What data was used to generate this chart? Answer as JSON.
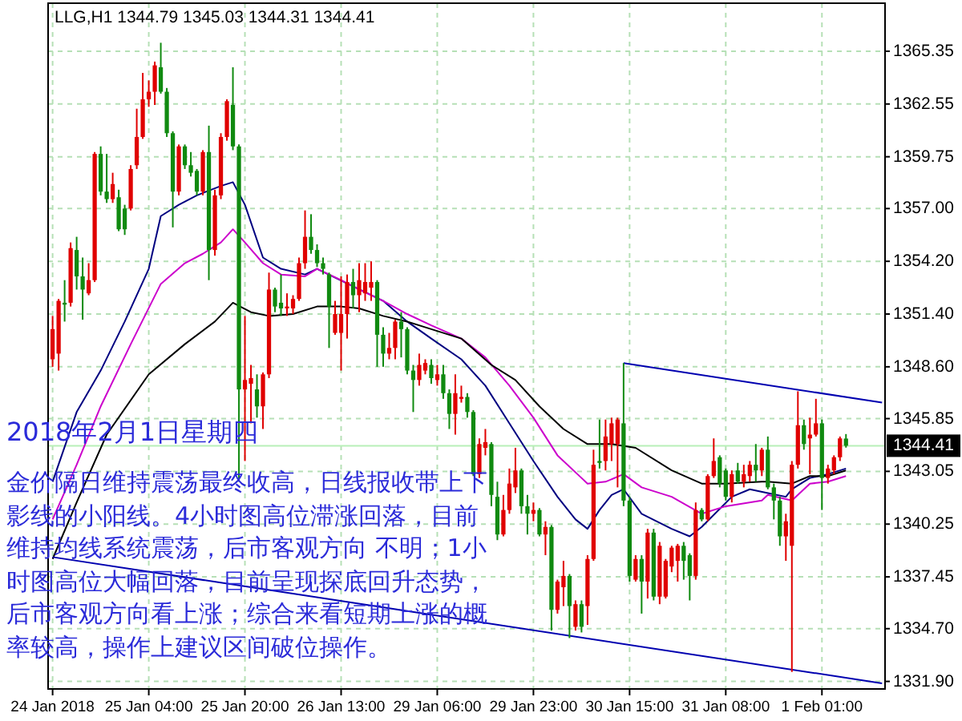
{
  "chart_data": {
    "type": "candlestick",
    "title": "LLG,H1 1344.79 1345.03 1344.31 1344.41",
    "annotations": [
      "2018年2月1日星期四",
      "金价隔日维持震荡最终收高，日线报收带上下影线的小阳线。4小时图高位滞涨回落，目前维持均线系统震荡，后市客观方向 不明；1小时图高位大幅回落，目前呈现探底回升态势，后市客观方向看上涨；综合来看短期上涨的概率较高，操作上建议区间破位操作。"
    ],
    "categories": [
      "24 Jan 2018",
      null,
      null,
      null,
      null,
      null,
      null,
      null,
      null,
      null,
      null,
      null,
      null,
      null,
      null,
      null,
      "25 Jan 04:00",
      null,
      null,
      null,
      null,
      null,
      null,
      null,
      null,
      null,
      null,
      null,
      null,
      null,
      null,
      null,
      "25 Jan 20:00",
      null,
      null,
      null,
      null,
      null,
      null,
      null,
      null,
      null,
      null,
      null,
      null,
      null,
      null,
      null,
      "26 Jan 13:00",
      null,
      null,
      null,
      null,
      null,
      null,
      null,
      null,
      null,
      null,
      null,
      null,
      null,
      null,
      null,
      "29 Jan 06:00",
      null,
      null,
      null,
      null,
      null,
      null,
      null,
      null,
      null,
      null,
      null,
      null,
      null,
      null,
      null,
      "29 Jan 23:00",
      null,
      null,
      null,
      null,
      null,
      null,
      null,
      null,
      null,
      null,
      null,
      null,
      null,
      null,
      null,
      "30 Jan 15:00",
      null,
      null,
      null,
      null,
      null,
      null,
      null,
      null,
      null,
      null,
      null,
      null,
      null,
      null,
      null,
      "31 Jan 08:00",
      null,
      null,
      null,
      null,
      null,
      null,
      null,
      null,
      null,
      null,
      null,
      null,
      null,
      null,
      null,
      "1 Feb 01:00",
      null,
      null,
      null,
      null,
      null,
      null,
      null,
      null,
      null,
      null
    ],
    "ohlc": [
      [
        1349.0,
        1351.3,
        1348.6,
        1350.6
      ],
      [
        1349.3,
        1352.2,
        1348.4,
        1352.1
      ],
      [
        1352.0,
        1353.2,
        1351.0,
        1351.9
      ],
      [
        1352.0,
        1355.2,
        1351.8,
        1354.9
      ],
      [
        1354.8,
        1355.5,
        1352.7,
        1353.4
      ],
      [
        1353.4,
        1354.4,
        1351.1,
        1352.7
      ],
      [
        1352.5,
        1354.1,
        1352.4,
        1353.2
      ],
      [
        1353.2,
        1360.0,
        1353.1,
        1359.9
      ],
      [
        1359.9,
        1360.3,
        1357.7,
        1357.9
      ],
      [
        1357.9,
        1359.9,
        1357.3,
        1357.5
      ],
      [
        1357.5,
        1358.9,
        1357.3,
        1358.3
      ],
      [
        1357.6,
        1358.0,
        1355.8,
        1355.9
      ],
      [
        1357.0,
        1357.2,
        1355.6,
        1355.9
      ],
      [
        1357.0,
        1359.3,
        1356.9,
        1359.1
      ],
      [
        1359.3,
        1362.3,
        1359.1,
        1360.8
      ],
      [
        1360.8,
        1364.2,
        1360.7,
        1362.8
      ],
      [
        1362.8,
        1363.8,
        1362.4,
        1363.2
      ],
      [
        1363.2,
        1364.8,
        1362.5,
        1364.6
      ],
      [
        1364.5,
        1365.8,
        1363.1,
        1363.2
      ],
      [
        1363.2,
        1363.4,
        1360.8,
        1361.0
      ],
      [
        1361.0,
        1361.1,
        1356.0,
        1357.9
      ],
      [
        1357.9,
        1360.4,
        1357.7,
        1360.3
      ],
      [
        1360.3,
        1360.4,
        1359.1,
        1359.3
      ],
      [
        1359.3,
        1360.0,
        1358.7,
        1358.9
      ],
      [
        1359.0,
        1359.1,
        1357.7,
        1357.9
      ],
      [
        1357.9,
        1360.1,
        1357.7,
        1360.0
      ],
      [
        1360.0,
        1361.4,
        1353.2,
        1354.8
      ],
      [
        1354.8,
        1358.0,
        1354.5,
        1357.7
      ],
      [
        1357.7,
        1361.0,
        1357.5,
        1360.8
      ],
      [
        1360.8,
        1362.8,
        1360.6,
        1362.7
      ],
      [
        1362.5,
        1364.5,
        1360.1,
        1360.3
      ],
      [
        1360.3,
        1360.4,
        1342.5,
        1347.4
      ],
      [
        1347.4,
        1351.3,
        1343.6,
        1347.9
      ],
      [
        1347.7,
        1348.7,
        1345.6,
        1348.0
      ],
      [
        1347.4,
        1348.2,
        1345.9,
        1346.5
      ],
      [
        1346.5,
        1348.3,
        1345.3,
        1348.2
      ],
      [
        1348.2,
        1353.6,
        1348.0,
        1352.7
      ],
      [
        1352.7,
        1352.8,
        1351.5,
        1351.8
      ],
      [
        1352.0,
        1353.5,
        1351.3,
        1351.7
      ],
      [
        1351.7,
        1352.5,
        1351.3,
        1351.8
      ],
      [
        1351.7,
        1352.4,
        1351.4,
        1352.2
      ],
      [
        1352.2,
        1354.4,
        1352.1,
        1354.1
      ],
      [
        1354.1,
        1356.9,
        1353.8,
        1355.5
      ],
      [
        1355.5,
        1356.7,
        1354.6,
        1354.8
      ],
      [
        1354.8,
        1355.1,
        1353.9,
        1354.1
      ],
      [
        1354.1,
        1354.4,
        1353.5,
        1353.8
      ],
      [
        1353.5,
        1353.6,
        1349.6,
        1351.8
      ],
      [
        1350.4,
        1352.1,
        1350.3,
        1351.4
      ],
      [
        1350.4,
        1353.4,
        1348.4,
        1351.4
      ],
      [
        1351.4,
        1353.5,
        1350.1,
        1353.1
      ],
      [
        1353.1,
        1353.8,
        1351.7,
        1352.4
      ],
      [
        1352.4,
        1354.1,
        1351.5,
        1353.2
      ],
      [
        1352.5,
        1354.1,
        1352.1,
        1353.1
      ],
      [
        1352.8,
        1354.2,
        1352.1,
        1353.1
      ],
      [
        1353.1,
        1353.2,
        1348.6,
        1350.3
      ],
      [
        1350.3,
        1350.7,
        1348.6,
        1349.3
      ],
      [
        1349.3,
        1350.4,
        1349.0,
        1349.6
      ],
      [
        1349.6,
        1351.1,
        1349.0,
        1351.0
      ],
      [
        1351.0,
        1351.5,
        1349.1,
        1350.6
      ],
      [
        1350.6,
        1350.7,
        1348.2,
        1348.4
      ],
      [
        1348.4,
        1348.7,
        1346.2,
        1347.9
      ],
      [
        1347.9,
        1349.3,
        1347.6,
        1348.7
      ],
      [
        1348.4,
        1349.0,
        1348.2,
        1348.8
      ],
      [
        1348.7,
        1349.0,
        1347.7,
        1348.0
      ],
      [
        1347.9,
        1348.7,
        1347.6,
        1348.2
      ],
      [
        1348.2,
        1348.7,
        1346.9,
        1347.2
      ],
      [
        1347.2,
        1347.4,
        1345.3,
        1346.1
      ],
      [
        1346.1,
        1348.2,
        1345.0,
        1347.2
      ],
      [
        1346.9,
        1347.6,
        1346.7,
        1347.0
      ],
      [
        1347.0,
        1347.2,
        1345.9,
        1346.2
      ],
      [
        1346.2,
        1346.3,
        1342.8,
        1342.9
      ],
      [
        1342.9,
        1344.8,
        1342.7,
        1344.5
      ],
      [
        1344.3,
        1345.3,
        1343.9,
        1344.6
      ],
      [
        1344.5,
        1344.6,
        1341.2,
        1341.8
      ],
      [
        1341.7,
        1342.5,
        1339.4,
        1339.7
      ],
      [
        1339.7,
        1341.8,
        1339.6,
        1341.0
      ],
      [
        1341.0,
        1343.2,
        1340.8,
        1342.4
      ],
      [
        1342.2,
        1344.3,
        1341.9,
        1343.1
      ],
      [
        1343.1,
        1343.2,
        1340.8,
        1341.2
      ],
      [
        1341.2,
        1341.8,
        1339.7,
        1340.8
      ],
      [
        1340.8,
        1341.4,
        1340.4,
        1341.0
      ],
      [
        1341.0,
        1341.1,
        1339.6,
        1339.7
      ],
      [
        1339.7,
        1340.4,
        1338.6,
        1340.1
      ],
      [
        1340.1,
        1340.2,
        1334.6,
        1335.7
      ],
      [
        1335.7,
        1337.3,
        1335.5,
        1337.2
      ],
      [
        1336.9,
        1338.3,
        1335.9,
        1337.5
      ],
      [
        1337.5,
        1337.6,
        1334.2,
        1335.9
      ],
      [
        1334.8,
        1336.2,
        1334.6,
        1336.0
      ],
      [
        1336.0,
        1336.2,
        1334.5,
        1334.8
      ],
      [
        1335.9,
        1338.6,
        1334.9,
        1338.4
      ],
      [
        1338.4,
        1344.2,
        1338.3,
        1343.4
      ],
      [
        1343.6,
        1345.8,
        1343.2,
        1343.5
      ],
      [
        1343.6,
        1345.8,
        1343.1,
        1344.9
      ],
      [
        1344.5,
        1345.9,
        1343.6,
        1345.6
      ],
      [
        1344.5,
        1345.9,
        1342.2,
        1345.8
      ],
      [
        1345.6,
        1348.8,
        1341.2,
        1341.5
      ],
      [
        1341.5,
        1341.7,
        1337.2,
        1337.5
      ],
      [
        1337.3,
        1338.6,
        1337.2,
        1338.4
      ],
      [
        1338.4,
        1338.6,
        1335.5,
        1337.2
      ],
      [
        1337.2,
        1340.0,
        1336.3,
        1339.8
      ],
      [
        1339.8,
        1340.0,
        1336.2,
        1336.4
      ],
      [
        1336.4,
        1339.3,
        1336.0,
        1339.1
      ],
      [
        1336.4,
        1338.4,
        1336.3,
        1338.3
      ],
      [
        1338.0,
        1339.1,
        1337.7,
        1339.0
      ],
      [
        1338.3,
        1339.2,
        1337.2,
        1339.1
      ],
      [
        1339.1,
        1339.3,
        1337.3,
        1338.3
      ],
      [
        1338.6,
        1338.7,
        1336.2,
        1337.5
      ],
      [
        1337.5,
        1341.4,
        1337.3,
        1341.0
      ],
      [
        1341.0,
        1341.1,
        1340.4,
        1340.5
      ],
      [
        1340.5,
        1342.9,
        1340.4,
        1342.8
      ],
      [
        1342.8,
        1344.8,
        1342.7,
        1343.6
      ],
      [
        1343.8,
        1343.9,
        1342.2,
        1342.4
      ],
      [
        1343.1,
        1343.2,
        1341.5,
        1341.7
      ],
      [
        1341.7,
        1343.1,
        1341.4,
        1342.9
      ],
      [
        1343.1,
        1343.5,
        1342.4,
        1342.5
      ],
      [
        1342.5,
        1343.4,
        1342.2,
        1342.9
      ],
      [
        1342.8,
        1343.6,
        1342.5,
        1343.4
      ],
      [
        1343.4,
        1344.5,
        1342.5,
        1343.1
      ],
      [
        1343.1,
        1344.3,
        1342.8,
        1344.2
      ],
      [
        1344.2,
        1344.9,
        1342.1,
        1342.2
      ],
      [
        1342.2,
        1342.4,
        1340.5,
        1341.5
      ],
      [
        1341.5,
        1341.7,
        1339.1,
        1339.6
      ],
      [
        1339.6,
        1340.8,
        1338.3,
        1340.4
      ],
      [
        1339.1,
        1343.6,
        1332.4,
        1343.4
      ],
      [
        1343.4,
        1347.3,
        1343.2,
        1345.5
      ],
      [
        1345.5,
        1345.8,
        1344.2,
        1344.5
      ],
      [
        1344.8,
        1345.9,
        1342.9,
        1345.0
      ],
      [
        1345.0,
        1346.9,
        1344.9,
        1345.6
      ],
      [
        1345.6,
        1345.8,
        1341.0,
        1342.7
      ],
      [
        1342.7,
        1343.4,
        1342.4,
        1343.2
      ],
      [
        1343.1,
        1343.9,
        1342.9,
        1343.8
      ],
      [
        1343.8,
        1344.9,
        1343.6,
        1344.8
      ],
      [
        1344.79,
        1345.03,
        1344.31,
        1344.41
      ],
      null,
      null,
      null,
      null,
      null,
      null
    ],
    "colors": [
      "#e00000",
      "#e00000",
      "#108a10",
      "#e00000",
      "#108a10",
      "#108a10",
      "#e00000",
      "#e00000",
      "#108a10",
      "#108a10",
      "#e00000",
      "#108a10",
      "#108a10",
      "#e00000",
      "#e00000",
      "#e00000",
      "#e00000",
      "#e00000",
      "#108a10",
      "#108a10",
      "#108a10",
      "#e00000",
      "#108a10",
      "#108a10",
      "#108a10",
      "#e00000",
      "#108a10",
      "#e00000",
      "#e00000",
      "#e00000",
      "#108a10",
      "#108a10",
      "#e00000",
      "#e00000",
      "#108a10",
      "#e00000",
      "#e00000",
      "#108a10",
      "#108a10",
      "#e00000",
      "#e00000",
      "#e00000",
      "#e00000",
      "#108a10",
      "#108a10",
      "#108a10",
      "#108a10",
      "#e00000",
      "#e00000",
      "#e00000",
      "#108a10",
      "#e00000",
      "#e00000",
      "#e00000",
      "#108a10",
      "#108a10",
      "#e00000",
      "#e00000",
      "#108a10",
      "#108a10",
      "#108a10",
      "#e00000",
      "#e00000",
      "#108a10",
      "#e00000",
      "#108a10",
      "#108a10",
      "#e00000",
      "#e00000",
      "#108a10",
      "#108a10",
      "#e00000",
      "#e00000",
      "#108a10",
      "#108a10",
      "#e00000",
      "#e00000",
      "#e00000",
      "#108a10",
      "#108a10",
      "#e00000",
      "#108a10",
      "#e00000",
      "#108a10",
      "#e00000",
      "#e00000",
      "#108a10",
      "#e00000",
      "#108a10",
      "#e00000",
      "#e00000",
      "#108a10",
      "#e00000",
      "#e00000",
      "#e00000",
      "#108a10",
      "#108a10",
      "#e00000",
      "#108a10",
      "#e00000",
      "#108a10",
      "#e00000",
      "#e00000",
      "#e00000",
      "#e00000",
      "#108a10",
      "#108a10",
      "#e00000",
      "#108a10",
      "#e00000",
      "#e00000",
      "#108a10",
      "#108a10",
      "#e00000",
      "#108a10",
      "#e00000",
      "#e00000",
      "#108a10",
      "#e00000",
      "#108a10",
      "#108a10",
      "#108a10",
      "#e00000",
      "#e00000",
      "#e00000",
      "#108a10",
      "#e00000",
      "#e00000",
      "#108a10",
      "#e00000",
      "#e00000",
      "#e00000",
      "#108a10",
      null,
      null,
      null,
      null,
      null,
      null
    ],
    "series": [
      {
        "type": "line",
        "color": "#000080",
        "values": [
          1342.5,
          null,
          null,
          null,
          1346.2,
          null,
          null,
          null,
          1348.4,
          null,
          null,
          null,
          1351.0,
          null,
          null,
          null,
          1353.8,
          null,
          1356.6,
          null,
          null,
          1357.2,
          null,
          null,
          1357.7,
          null,
          null,
          null,
          1358.2,
          null,
          1358.4,
          null,
          1357.2,
          null,
          null,
          1354.4,
          null,
          null,
          1353.8,
          null,
          null,
          null,
          1353.5,
          null,
          1353.8,
          null,
          null,
          null,
          null,
          null,
          null,
          null,
          null,
          null,
          null,
          1352.1,
          null,
          null,
          null,
          1351.0,
          null,
          null,
          null,
          1350.1,
          null,
          null,
          null,
          null,
          1349.0,
          null,
          null,
          null,
          1347.6,
          null,
          null,
          null,
          1345.6,
          null,
          null,
          null,
          1343.6,
          null,
          null,
          null,
          1341.7,
          null,
          null,
          1340.5,
          null,
          1340.0,
          null,
          1341.0,
          null,
          1341.8,
          null,
          1342.1,
          null,
          null,
          1340.8,
          null,
          null,
          null,
          null,
          1340.0,
          null,
          null,
          1339.6,
          null,
          1340.1,
          null,
          null,
          null,
          null,
          1341.7,
          null,
          null,
          1342.1,
          null,
          null,
          1341.9,
          null,
          null,
          1341.7,
          1342.1,
          null,
          null,
          1342.7,
          null,
          null,
          1342.9,
          null,
          null,
          1343.2,
          null,
          null,
          null,
          null,
          null,
          null
        ]
      },
      {
        "type": "line",
        "color": "#cc00cc",
        "values": [
          1340.5,
          null,
          null,
          null,
          1343.4,
          null,
          null,
          null,
          1346.5,
          null,
          null,
          null,
          null,
          1349.8,
          null,
          null,
          null,
          null,
          1353.0,
          null,
          null,
          null,
          1354.1,
          null,
          null,
          1354.6,
          null,
          null,
          1355.2,
          null,
          1355.9,
          null,
          1355.2,
          null,
          null,
          1354.1,
          null,
          null,
          1353.5,
          null,
          null,
          null,
          1353.4,
          null,
          1353.8,
          null,
          null,
          null,
          1353.2,
          null,
          null,
          1352.7,
          null,
          null,
          null,
          1352.1,
          null,
          null,
          null,
          1351.4,
          null,
          null,
          null,
          1350.8,
          null,
          null,
          null,
          null,
          1350.1,
          null,
          null,
          null,
          1349.1,
          null,
          null,
          null,
          1347.6,
          null,
          null,
          null,
          1345.9,
          null,
          null,
          null,
          1343.9,
          null,
          null,
          null,
          1342.7,
          1342.4,
          null,
          null,
          1342.5,
          null,
          null,
          1342.9,
          null,
          null,
          1342.2,
          null,
          null,
          null,
          null,
          1341.7,
          null,
          null,
          null,
          null,
          1340.8,
          null,
          null,
          null,
          1341.2,
          null,
          null,
          null,
          null,
          null,
          1341.5,
          1341.8,
          null,
          null,
          null,
          1341.5,
          null,
          null,
          1342.4,
          null,
          null,
          1342.5,
          null,
          null,
          1342.8,
          null,
          null,
          null,
          null,
          null,
          null
        ]
      },
      {
        "type": "line",
        "color": "#000000",
        "values": [
          1338.4,
          null,
          null,
          null,
          1341.4,
          null,
          null,
          null,
          null,
          1345.0,
          null,
          null,
          null,
          null,
          null,
          null,
          1348.2,
          null,
          null,
          null,
          null,
          null,
          1349.8,
          null,
          null,
          null,
          null,
          1351.0,
          null,
          null,
          1352.0,
          null,
          null,
          1351.5,
          null,
          null,
          1351.3,
          null,
          null,
          null,
          1351.4,
          null,
          null,
          null,
          1351.8,
          null,
          null,
          null,
          1351.8,
          null,
          null,
          1351.7,
          null,
          null,
          null,
          1351.3,
          null,
          null,
          null,
          1351.0,
          null,
          null,
          null,
          1350.6,
          null,
          null,
          null,
          null,
          1350.1,
          null,
          null,
          null,
          null,
          1348.7,
          null,
          null,
          null,
          1347.9,
          null,
          null,
          null,
          1346.5,
          null,
          null,
          null,
          1345.3,
          null,
          null,
          null,
          1344.5,
          null,
          null,
          null,
          1344.5,
          null,
          null,
          null,
          1344.3,
          null,
          null,
          null,
          null,
          null,
          1343.1,
          null,
          null,
          null,
          null,
          1342.4,
          null,
          null,
          null,
          1342.4,
          null,
          null,
          null,
          null,
          null,
          1342.5,
          1342.5,
          null,
          null,
          null,
          1342.4,
          null,
          null,
          1342.8,
          null,
          null,
          1342.8,
          null,
          null,
          1343.1,
          null,
          null,
          null,
          null,
          null,
          null
        ]
      },
      {
        "type": "line",
        "color": "#0000b0",
        "values": [
          null,
          null,
          null,
          null,
          null,
          null,
          null,
          null,
          null,
          null,
          null,
          null,
          null,
          null,
          null,
          null,
          null,
          null,
          null,
          null,
          null,
          null,
          null,
          null,
          null,
          null,
          null,
          null,
          null,
          null,
          null,
          null,
          null,
          null,
          null,
          null,
          null,
          null,
          null,
          null,
          null,
          null,
          null,
          null,
          null,
          null,
          null,
          null,
          null,
          null,
          null,
          null,
          null,
          null,
          null,
          null,
          null,
          null,
          null,
          null,
          null,
          null,
          null,
          null,
          null,
          null,
          null,
          null,
          null,
          null,
          null,
          null,
          null,
          null,
          null,
          null,
          null,
          null,
          null,
          null,
          null,
          null,
          null,
          null,
          null,
          null,
          null,
          null,
          null,
          null,
          null,
          null,
          null,
          null,
          null,
          1348.8,
          null,
          null,
          null,
          null,
          null,
          null,
          null,
          null,
          null,
          null,
          null,
          null,
          null,
          null,
          null,
          null,
          null,
          null,
          null,
          null,
          null,
          null,
          null,
          null,
          null,
          null,
          null,
          null,
          null,
          null,
          null,
          null,
          null,
          null,
          null,
          null,
          null,
          null,
          null,
          null,
          null,
          null,
          1346.7
        ]
      },
      {
        "type": "line",
        "color": "#0000b0",
        "values": [
          1338.5,
          null,
          null,
          null,
          null,
          null,
          null,
          null,
          null,
          null,
          null,
          null,
          null,
          null,
          null,
          null,
          null,
          null,
          null,
          null,
          null,
          null,
          null,
          null,
          null,
          null,
          null,
          null,
          null,
          null,
          null,
          null,
          null,
          null,
          null,
          null,
          null,
          null,
          null,
          null,
          null,
          null,
          null,
          null,
          null,
          null,
          null,
          null,
          null,
          null,
          null,
          null,
          null,
          null,
          null,
          null,
          null,
          null,
          null,
          null,
          null,
          null,
          null,
          null,
          null,
          null,
          null,
          null,
          null,
          null,
          null,
          null,
          null,
          null,
          null,
          null,
          null,
          null,
          null,
          null,
          null,
          null,
          null,
          null,
          null,
          null,
          null,
          null,
          null,
          null,
          null,
          null,
          null,
          null,
          null,
          null,
          null,
          null,
          null,
          null,
          null,
          null,
          null,
          null,
          null,
          null,
          null,
          null,
          null,
          null,
          null,
          null,
          null,
          null,
          null,
          null,
          null,
          null,
          null,
          null,
          null,
          null,
          null,
          null,
          null,
          null,
          null,
          null,
          null,
          null,
          null,
          null,
          null,
          null,
          null,
          null,
          null,
          null,
          1331.8
        ]
      }
    ],
    "ylim": [
      1331.5,
      1367.9
    ],
    "yticks": [
      1365.35,
      1362.55,
      1359.75,
      {
        "value": 1357.0,
        "label": "1357.00"
      },
      {
        "value": 1354.2,
        "label": "1354.20"
      },
      {
        "value": 1351.4,
        "label": "1351.40"
      },
      {
        "value": 1348.6,
        "label": "1348.60"
      },
      1345.85,
      1343.05,
      1340.25,
      1337.45,
      {
        "value": 1334.7,
        "label": "1334.70"
      },
      {
        "value": 1331.9,
        "label": "1331.90"
      }
    ],
    "grid": true,
    "ref_lines": [
      {
        "axis": "y",
        "value": 1344.41,
        "label": "1344.41",
        "color": "#b8f0b8"
      }
    ]
  }
}
